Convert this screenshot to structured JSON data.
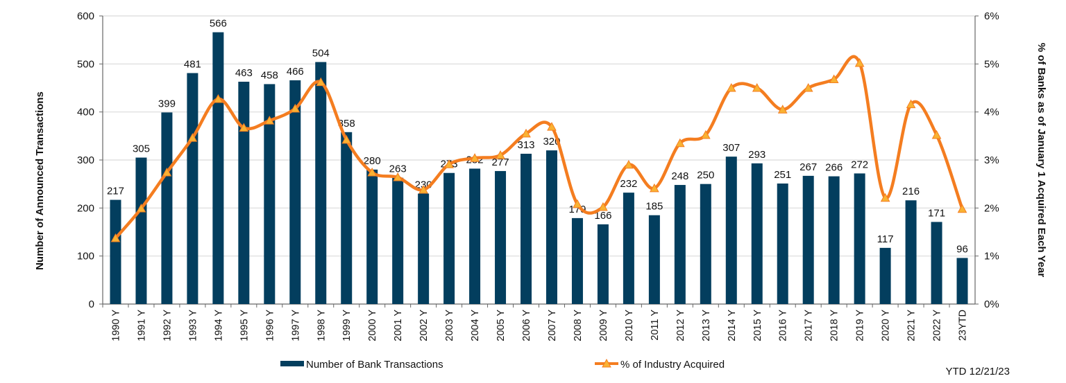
{
  "chart_data": {
    "type": "bar+line",
    "categories": [
      "1990 Y",
      "1991 Y",
      "1992 Y",
      "1993 Y",
      "1994 Y",
      "1995 Y",
      "1996 Y",
      "1997 Y",
      "1998 Y",
      "1999 Y",
      "2000 Y",
      "2001 Y",
      "2002 Y",
      "2003 Y",
      "2004 Y",
      "2005 Y",
      "2006 Y",
      "2007 Y",
      "2008 Y",
      "2009 Y",
      "2010 Y",
      "2011 Y",
      "2012 Y",
      "2013 Y",
      "2014 Y",
      "2015 Y",
      "2016 Y",
      "2017 Y",
      "2018 Y",
      "2019 Y",
      "2020 Y",
      "2021 Y",
      "2022 Y",
      "23YTD"
    ],
    "series": [
      {
        "name": "Number of Bank Transactions",
        "type": "bar",
        "axis": "left",
        "color": "#033e5e",
        "values": [
          217,
          305,
          399,
          481,
          566,
          463,
          458,
          466,
          504,
          358,
          280,
          263,
          230,
          273,
          282,
          277,
          313,
          320,
          179,
          166,
          232,
          185,
          248,
          250,
          307,
          293,
          251,
          267,
          266,
          272,
          117,
          216,
          171,
          96
        ]
      },
      {
        "name": "% of Industry Acquired",
        "type": "line",
        "axis": "right",
        "color": "#f47d20",
        "marker_color": "#f9b233",
        "values": [
          1.37,
          1.99,
          2.74,
          3.46,
          4.27,
          3.67,
          3.82,
          4.07,
          4.62,
          3.42,
          2.74,
          2.64,
          2.38,
          2.91,
          3.04,
          3.1,
          3.55,
          3.69,
          2.08,
          2.02,
          2.9,
          2.41,
          3.35,
          3.52,
          4.5,
          4.5,
          4.05,
          4.5,
          4.68,
          5.02,
          2.21,
          4.16,
          3.52,
          1.98
        ]
      }
    ],
    "ylabel": "Number of Announced Transactions",
    "y2label": "% of Banks as of January 1 Acquired Each Year",
    "ylim": [
      0,
      600
    ],
    "y2lim": [
      0,
      6
    ],
    "yticks": [
      "0",
      "100",
      "200",
      "300",
      "400",
      "500",
      "600"
    ],
    "y2ticks": [
      "0%",
      "1%",
      "2%",
      "3%",
      "4%",
      "5%",
      "6%"
    ],
    "grid": true,
    "legend": "bottom",
    "footnote": "YTD 12/21/23"
  }
}
